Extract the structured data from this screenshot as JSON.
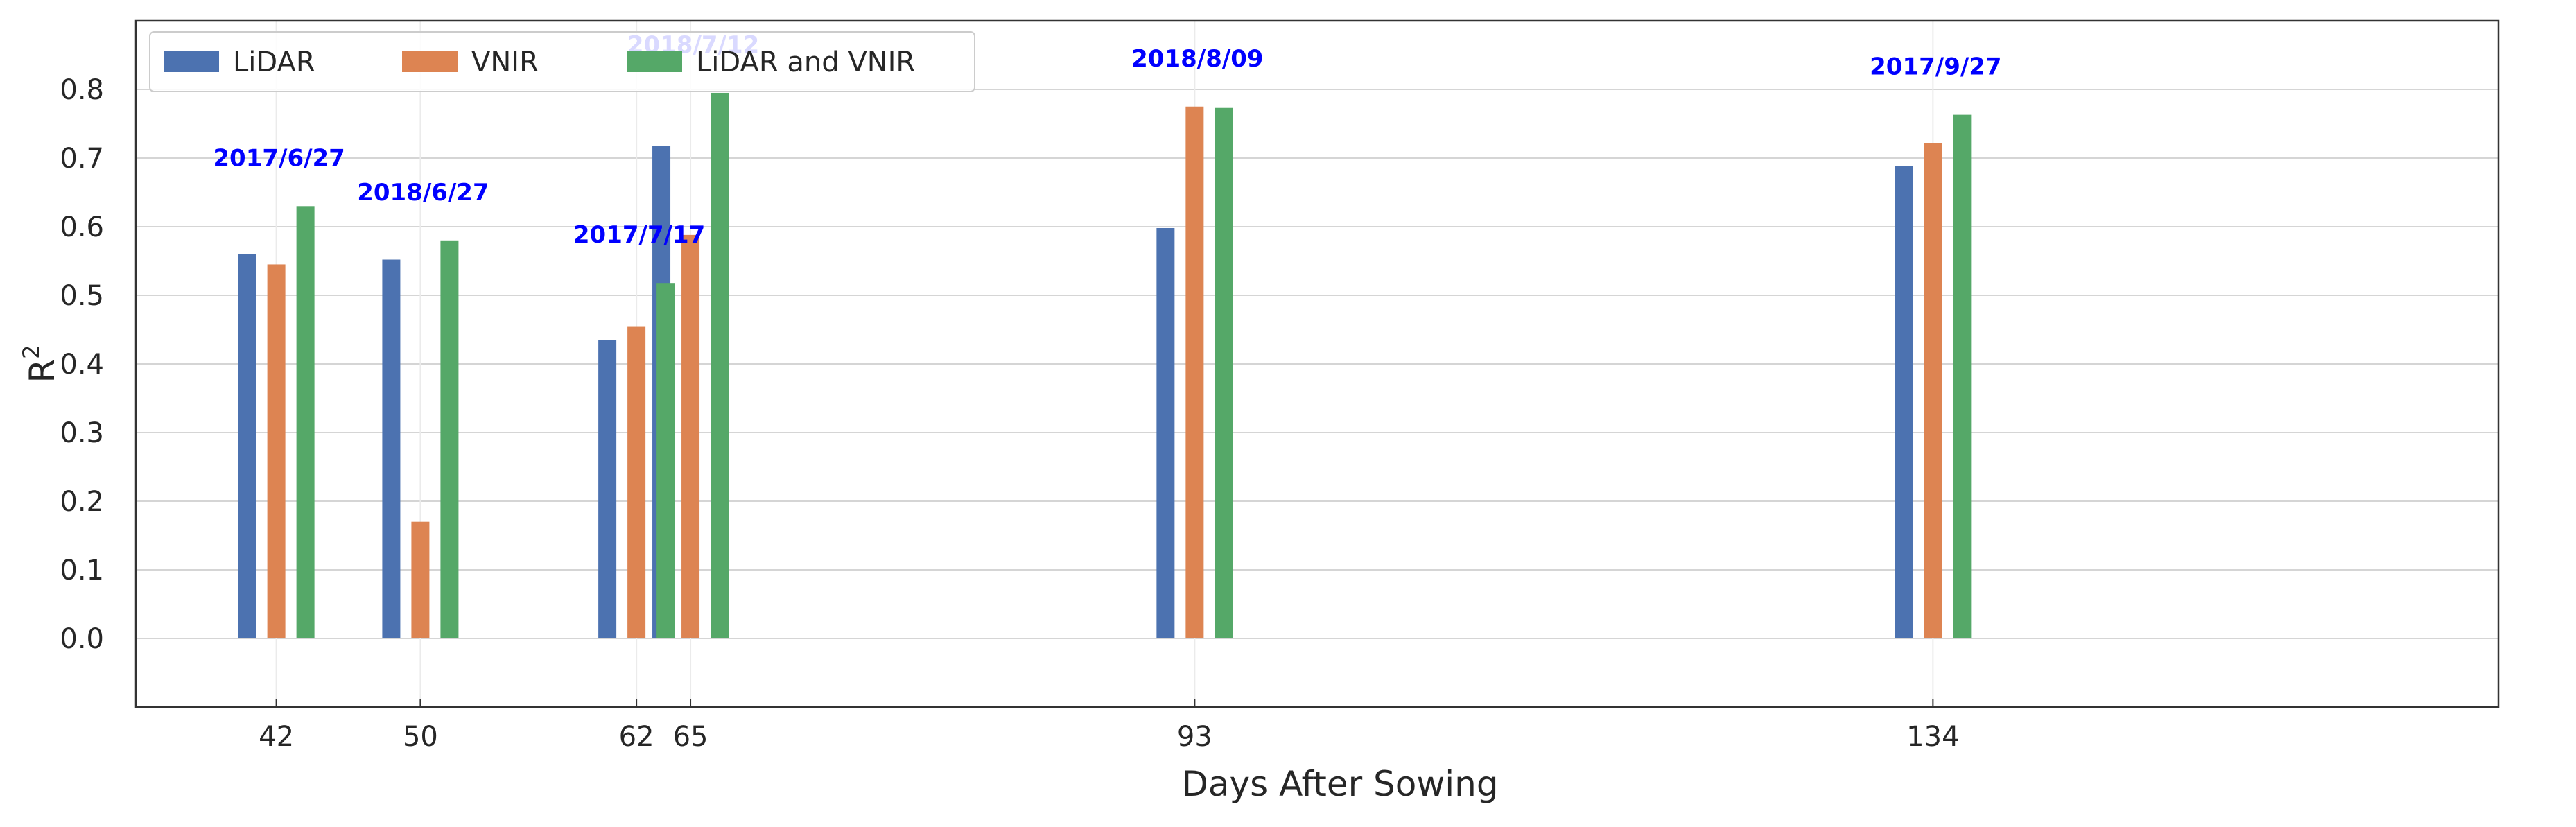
{
  "chart_data": {
    "type": "bar",
    "title": "",
    "xlabel": "Days After Sowing",
    "ylabel_base": "R",
    "ylabel_sup": "2",
    "x": [
      42,
      50,
      62,
      65,
      93,
      134
    ],
    "categories": [
      "42",
      "50",
      "62",
      "65",
      "93",
      "134"
    ],
    "annotations": [
      "2017/6/27",
      "2018/6/27",
      "2017/7/17",
      "2018/7/12",
      "2018/8/09",
      "2017/9/27"
    ],
    "annotation_color": "#0000ff",
    "series": [
      {
        "name": "LiDAR",
        "color": "#4c72b0",
        "values": [
          0.56,
          0.552,
          0.435,
          0.718,
          0.598,
          0.688
        ]
      },
      {
        "name": "VNIR",
        "color": "#dd8452",
        "values": [
          0.545,
          0.17,
          0.455,
          0.588,
          0.775,
          0.722
        ]
      },
      {
        "name": "LiDAR and VNIR",
        "color": "#55a868",
        "values": [
          0.63,
          0.58,
          0.518,
          0.795,
          0.773,
          0.763
        ]
      }
    ],
    "ylim": [
      -0.1,
      0.9
    ],
    "yticks": [
      "0.0",
      "0.1",
      "0.2",
      "0.3",
      "0.4",
      "0.5",
      "0.6",
      "0.7",
      "0.8"
    ],
    "grid": true,
    "legend_position": "top-left"
  }
}
